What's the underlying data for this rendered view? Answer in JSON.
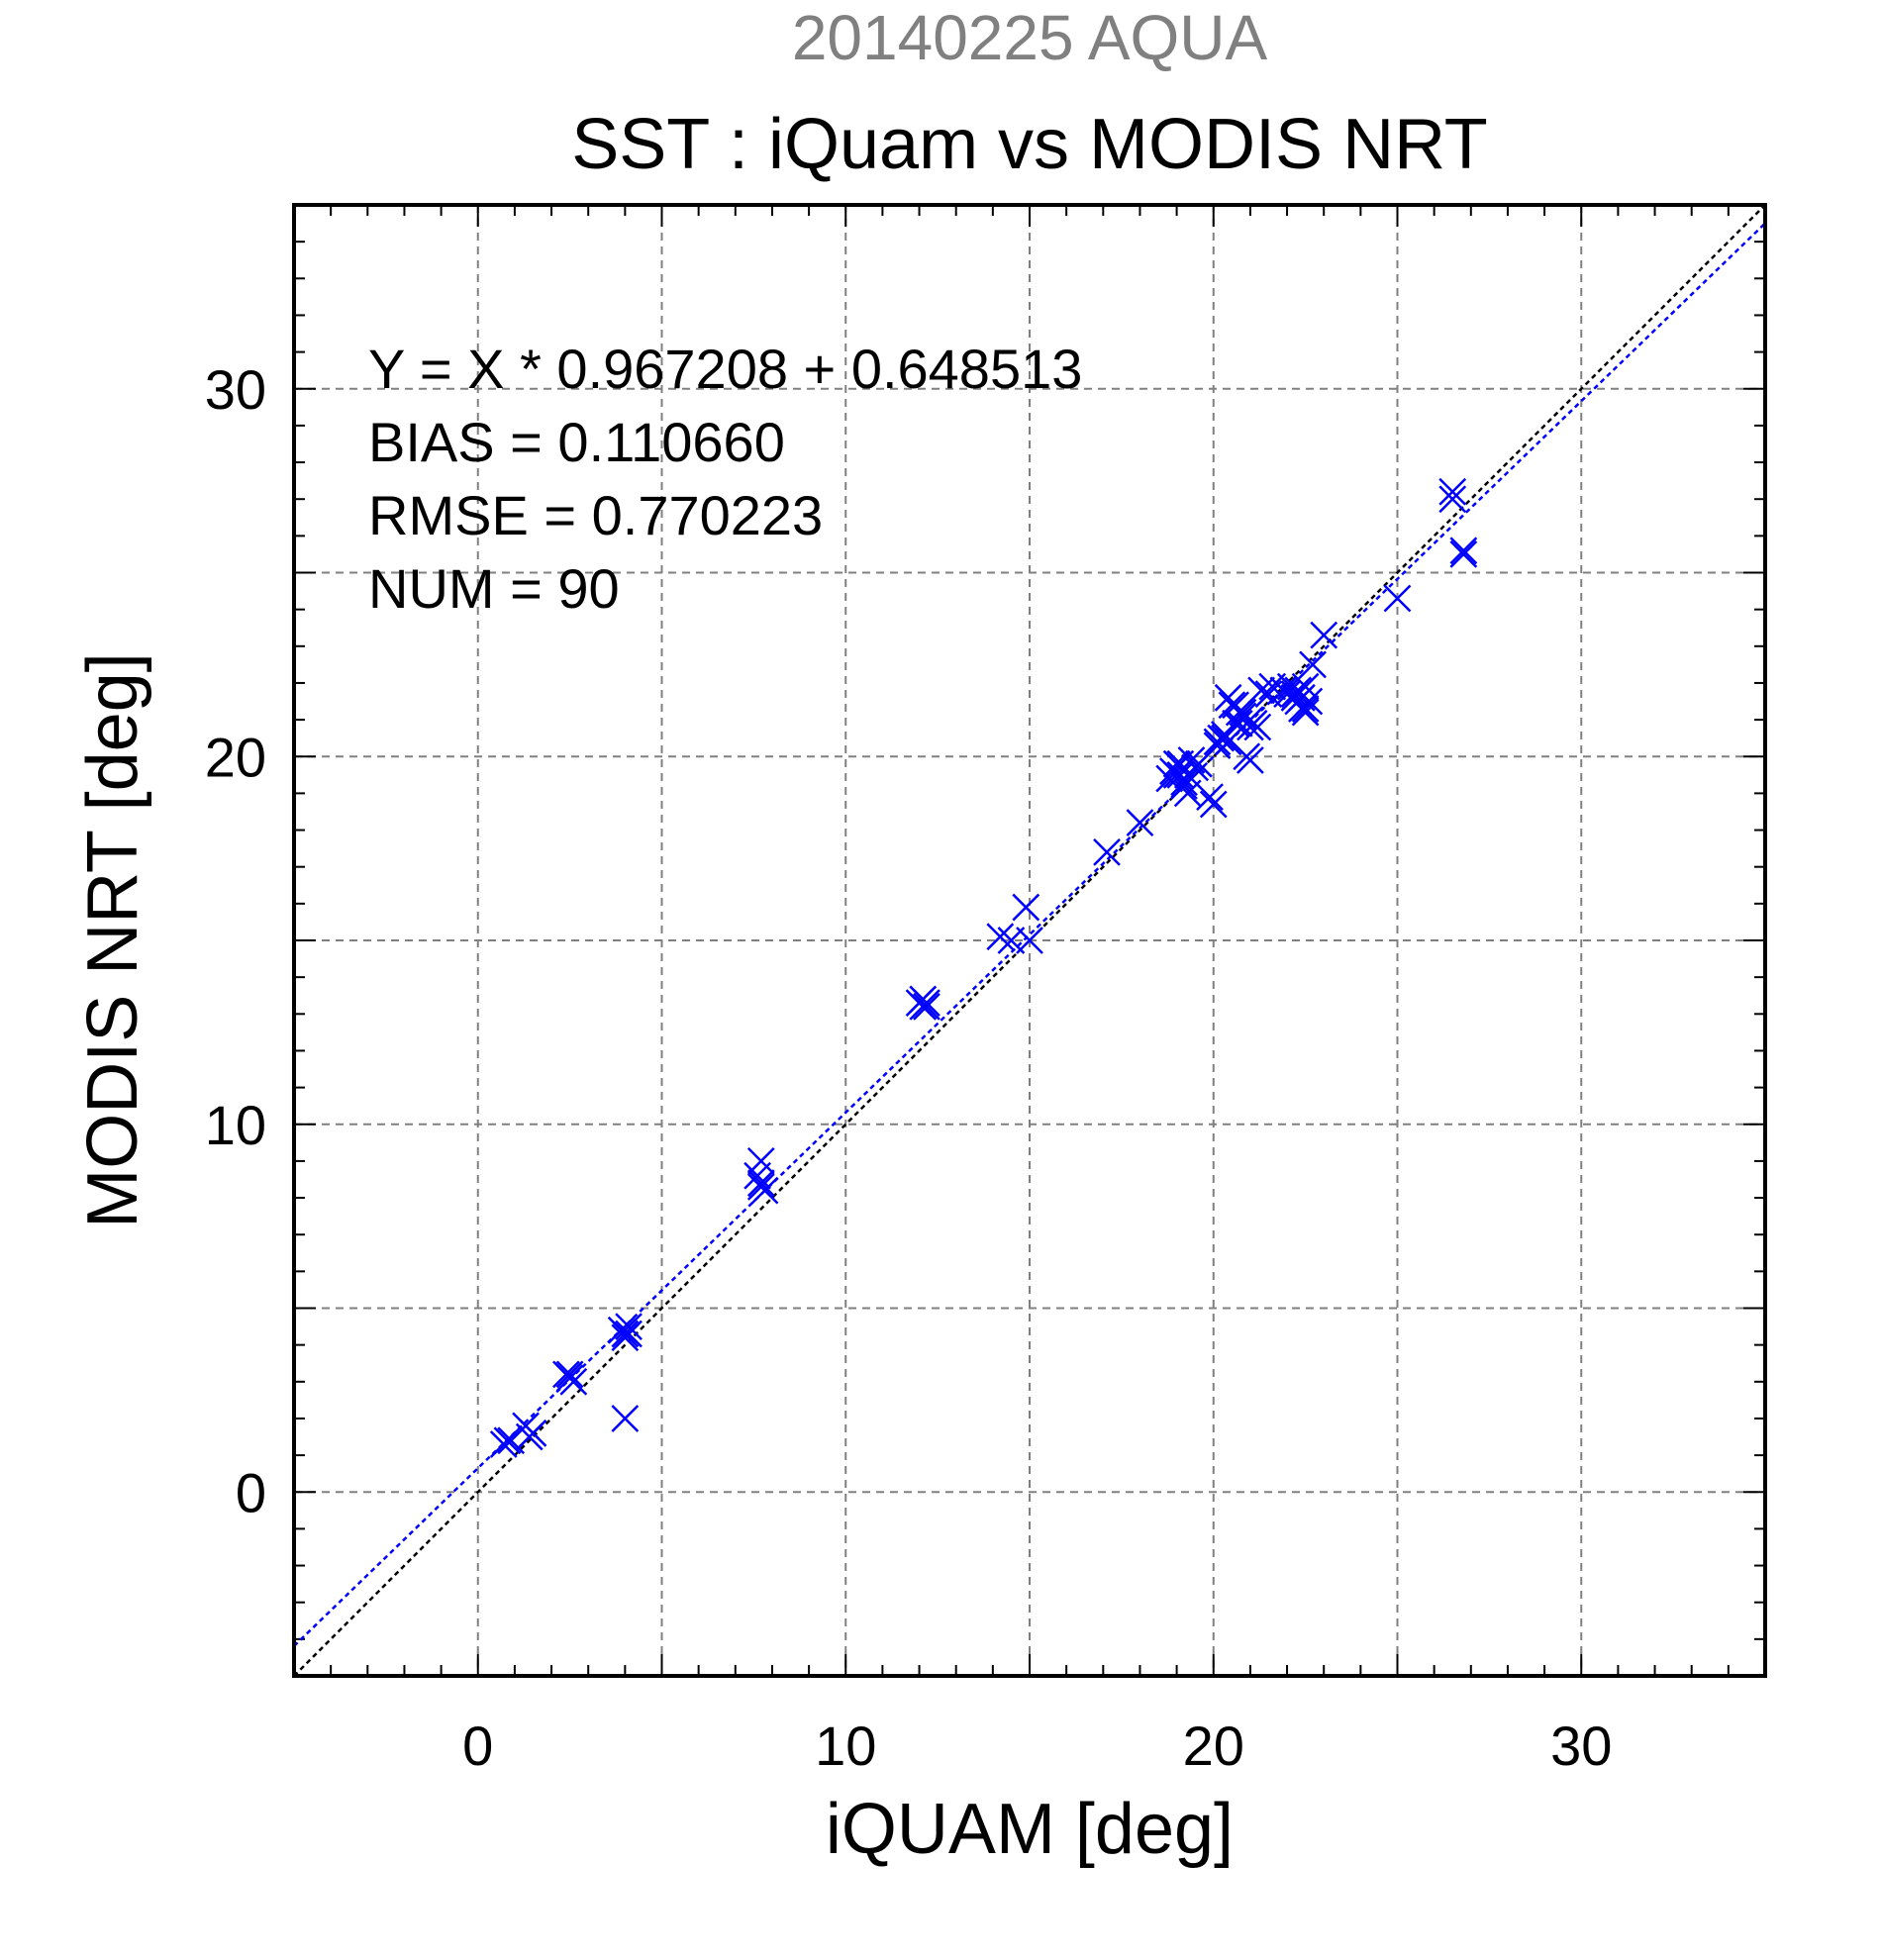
{
  "chart_data": {
    "type": "scatter",
    "suptitle": "20140225 AQUA",
    "title": "SST : iQuam vs MODIS NRT",
    "xlabel": "iQUAM [deg]",
    "ylabel": "MODIS NRT [deg]",
    "xlim": [
      -5,
      35
    ],
    "ylim": [
      -5,
      35
    ],
    "xticks": [
      0,
      10,
      20,
      30
    ],
    "yticks": [
      0,
      10,
      20,
      30
    ],
    "xtick_labels": [
      "0",
      "10",
      "20",
      "30"
    ],
    "ytick_labels": [
      "0",
      "10",
      "20",
      "30"
    ],
    "grid": true,
    "stats": [
      "Y = X * 0.967208 + 0.648513",
      "BIAS = 0.110660",
      "RMSE = 0.770223",
      "NUM = 90"
    ],
    "regression": {
      "slope": 0.967208,
      "intercept": 0.648513,
      "color": "#0000ff"
    },
    "identity_line_color": "#000000",
    "marker_color": "#0000ff",
    "series": [
      {
        "marker": "x",
        "x": [
          0.7,
          0.8,
          1.3,
          1.4,
          1.5,
          2.4,
          2.5,
          2.6,
          3.9,
          4.0,
          4.0,
          4.1,
          4.0,
          7.6,
          7.7,
          7.7,
          7.8,
          7.7,
          12.0,
          12.1,
          12.2,
          12.1,
          14.2,
          14.5,
          14.9,
          15.0,
          17.1,
          18.0,
          18.8,
          18.9,
          19.0,
          19.1,
          19.1,
          19.2,
          19.3,
          19.4,
          19.5,
          19.2,
          19.3,
          19.9,
          20.0,
          20.1,
          20.2,
          20.3,
          20.4,
          20.4,
          20.6,
          20.7,
          20.8,
          20.9,
          21.0,
          21.0,
          21.1,
          21.2,
          21.3,
          21.6,
          21.9,
          22.0,
          22.1,
          22.2,
          22.3,
          22.3,
          22.4,
          22.5,
          22.5,
          22.6,
          22.7,
          23.0,
          25.0,
          26.5,
          26.5,
          26.8,
          26.8,
          0.9,
          2.5,
          4.1,
          12.2,
          19.0,
          19.6,
          20.1,
          20.3,
          20.6,
          20.8,
          22.2,
          22.4,
          22.5,
          21.0,
          20.5,
          20.7,
          21.5
        ],
        "y": [
          1.3,
          1.4,
          1.8,
          1.5,
          1.6,
          3.2,
          3.1,
          3.0,
          4.4,
          4.2,
          4.3,
          4.5,
          2.0,
          8.6,
          9.0,
          8.3,
          8.2,
          8.4,
          13.3,
          13.2,
          13.3,
          13.4,
          15.1,
          15.0,
          15.9,
          15.0,
          17.4,
          18.2,
          19.4,
          19.6,
          19.8,
          19.5,
          19.8,
          19.2,
          19.0,
          19.9,
          19.7,
          19.3,
          19.5,
          18.9,
          18.7,
          20.3,
          20.5,
          20.6,
          21.6,
          20.4,
          21.4,
          20.9,
          21.1,
          20.0,
          19.9,
          21.0,
          20.9,
          20.8,
          21.8,
          21.9,
          21.8,
          21.7,
          21.9,
          21.6,
          21.8,
          21.5,
          21.3,
          21.2,
          21.9,
          21.5,
          22.5,
          23.3,
          24.3,
          27.2,
          27.0,
          25.6,
          25.5,
          1.4,
          3.2,
          4.3,
          13.2,
          19.5,
          19.8,
          20.4,
          20.5,
          20.9,
          21.2,
          21.7,
          21.6,
          21.3,
          20.8,
          21.4,
          21.2,
          21.7
        ]
      }
    ]
  }
}
